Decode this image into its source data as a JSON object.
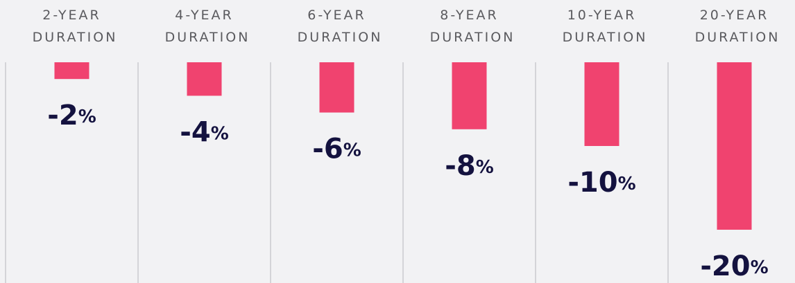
{
  "chart_data": {
    "type": "bar",
    "categories": [
      "2-YEAR DURATION",
      "4-YEAR DURATION",
      "6-YEAR DURATION",
      "8-YEAR DURATION",
      "10-YEAR DURATION",
      "20-YEAR DURATION"
    ],
    "values": [
      -2,
      -4,
      -6,
      -8,
      -10,
      -20
    ],
    "value_labels": [
      "-2%",
      "-4%",
      "-6%",
      "-8%",
      "-10%",
      "-20%"
    ],
    "color": "#f0436f",
    "ylim": [
      -20,
      0
    ]
  }
}
